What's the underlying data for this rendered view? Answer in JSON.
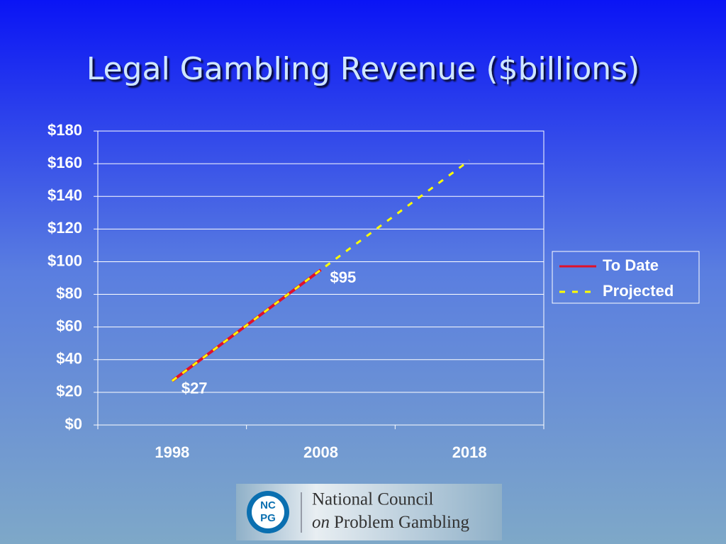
{
  "chart_data": {
    "type": "line",
    "title": "Legal Gambling Revenue ($billions)",
    "categories": [
      "1998",
      "2008",
      "2018"
    ],
    "series": [
      {
        "name": "To Date",
        "color": "#e0102a",
        "style": "solid",
        "values": [
          27,
          95,
          null
        ],
        "value_labels": [
          "$27",
          "$95",
          null
        ]
      },
      {
        "name": "Projected",
        "color": "#ffff00",
        "style": "dashed",
        "values": [
          27,
          95,
          162
        ]
      }
    ],
    "ylim": [
      0,
      180
    ],
    "yticks": [
      {
        "value": 0,
        "label": "$0"
      },
      {
        "value": 20,
        "label": "$20"
      },
      {
        "value": 40,
        "label": "$40"
      },
      {
        "value": 60,
        "label": "$60"
      },
      {
        "value": 80,
        "label": "$80"
      },
      {
        "value": 100,
        "label": "$100"
      },
      {
        "value": 120,
        "label": "$120"
      },
      {
        "value": 140,
        "label": "$140"
      },
      {
        "value": 160,
        "label": "$160"
      },
      {
        "value": 180,
        "label": "$180"
      }
    ],
    "grid": true,
    "legend": "right"
  },
  "logo": {
    "badge_top": "NC",
    "badge_bottom": "PG",
    "line1": "National Council",
    "line2_italic": "on",
    "line2": "Problem Gambling"
  }
}
